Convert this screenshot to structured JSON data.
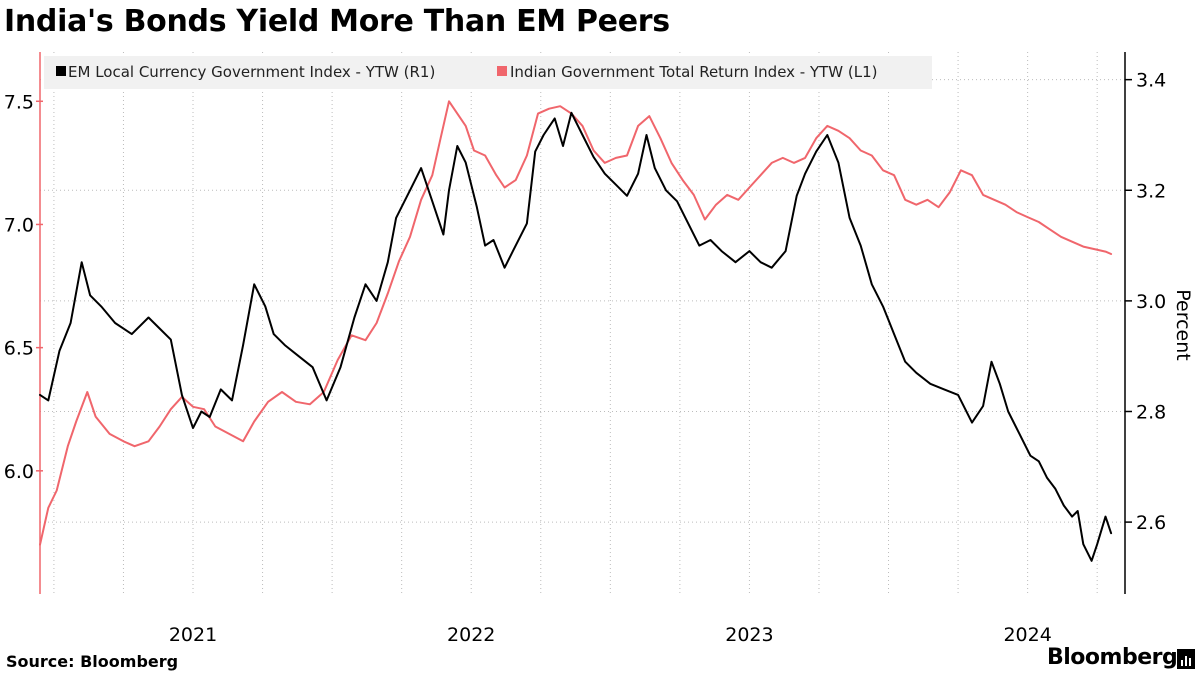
{
  "title": "India's Bonds Yield More Than EM Peers",
  "source": "Source: Bloomberg",
  "logo": "Bloomberg",
  "colors": {
    "em": "#000000",
    "india": "#f0666c",
    "grid": "#bcbcbc",
    "legend_bg": "#f1f1f1"
  },
  "chart_data": {
    "type": "line",
    "title": "India's Bonds Yield More Than EM Peers",
    "x_range": [
      2020.45,
      2024.35
    ],
    "x_ticks": [
      {
        "label": "2021",
        "value": 2021.0
      },
      {
        "label": "2022",
        "value": 2022.0
      },
      {
        "label": "2023",
        "value": 2023.0
      },
      {
        "label": "2024",
        "value": 2024.0
      }
    ],
    "gridlines_x": [
      2020.5,
      2020.75,
      2021.0,
      2021.25,
      2021.5,
      2021.75,
      2022.0,
      2022.25,
      2022.5,
      2022.75,
      2023.0,
      2023.25,
      2023.5,
      2023.75,
      2024.0,
      2024.25
    ],
    "y_left": {
      "label": "",
      "range": [
        5.5,
        7.7
      ],
      "ticks": [
        "6.0",
        "6.5",
        "7.0",
        "7.5"
      ],
      "values": [
        6.0,
        6.5,
        7.0,
        7.5
      ]
    },
    "y_right": {
      "label": "Percent",
      "range": [
        2.47,
        3.45
      ],
      "ticks": [
        "2.6",
        "2.8",
        "3.0",
        "3.2",
        "3.4"
      ],
      "values": [
        2.6,
        2.8,
        3.0,
        3.2,
        3.4
      ]
    },
    "series": [
      {
        "name": "EM Local Currency Government Index - YTW (R1)",
        "axis": "right",
        "color": "#000000",
        "x": [
          2020.45,
          2020.48,
          2020.52,
          2020.56,
          2020.6,
          2020.63,
          2020.67,
          2020.72,
          2020.78,
          2020.84,
          2020.88,
          2020.92,
          2020.96,
          2021.0,
          2021.03,
          2021.06,
          2021.1,
          2021.14,
          2021.18,
          2021.22,
          2021.26,
          2021.29,
          2021.33,
          2021.38,
          2021.43,
          2021.48,
          2021.53,
          2021.58,
          2021.62,
          2021.66,
          2021.7,
          2021.73,
          2021.78,
          2021.82,
          2021.86,
          2021.9,
          2021.92,
          2021.95,
          2021.98,
          2022.02,
          2022.05,
          2022.08,
          2022.12,
          2022.15,
          2022.2,
          2022.23,
          2022.26,
          2022.3,
          2022.33,
          2022.36,
          2022.4,
          2022.44,
          2022.48,
          2022.52,
          2022.56,
          2022.6,
          2022.63,
          2022.66,
          2022.7,
          2022.74,
          2022.78,
          2022.82,
          2022.86,
          2022.9,
          2022.95,
          2023.0,
          2023.04,
          2023.08,
          2023.13,
          2023.17,
          2023.2,
          2023.24,
          2023.28,
          2023.32,
          2023.36,
          2023.4,
          2023.44,
          2023.48,
          2023.52,
          2023.56,
          2023.6,
          2023.65,
          2023.7,
          2023.75,
          2023.8,
          2023.84,
          2023.87,
          2023.9,
          2023.93,
          2023.97,
          2024.01,
          2024.04,
          2024.07,
          2024.1,
          2024.13,
          2024.16,
          2024.18,
          2024.2,
          2024.23,
          2024.25,
          2024.28,
          2024.3
        ],
        "values": [
          2.83,
          2.82,
          2.91,
          2.96,
          3.07,
          3.01,
          2.99,
          2.96,
          2.94,
          2.97,
          2.95,
          2.93,
          2.83,
          2.77,
          2.8,
          2.79,
          2.84,
          2.82,
          2.92,
          3.03,
          2.99,
          2.94,
          2.92,
          2.9,
          2.88,
          2.82,
          2.88,
          2.97,
          3.03,
          3.0,
          3.07,
          3.15,
          3.2,
          3.24,
          3.18,
          3.12,
          3.2,
          3.28,
          3.25,
          3.17,
          3.1,
          3.11,
          3.06,
          3.09,
          3.14,
          3.27,
          3.3,
          3.33,
          3.28,
          3.34,
          3.3,
          3.26,
          3.23,
          3.21,
          3.19,
          3.23,
          3.3,
          3.24,
          3.2,
          3.18,
          3.14,
          3.1,
          3.11,
          3.09,
          3.07,
          3.09,
          3.07,
          3.06,
          3.09,
          3.19,
          3.23,
          3.27,
          3.3,
          3.25,
          3.15,
          3.1,
          3.03,
          2.99,
          2.94,
          2.89,
          2.87,
          2.85,
          2.84,
          2.83,
          2.78,
          2.81,
          2.89,
          2.85,
          2.8,
          2.76,
          2.72,
          2.71,
          2.68,
          2.66,
          2.63,
          2.61,
          2.62,
          2.56,
          2.53,
          2.56,
          2.61,
          2.58
        ]
      },
      {
        "name": "Indian Government Total Return Index - YTW (L1)",
        "axis": "left",
        "color": "#f0666c",
        "x": [
          2020.45,
          2020.48,
          2020.51,
          2020.55,
          2020.58,
          2020.62,
          2020.65,
          2020.7,
          2020.75,
          2020.79,
          2020.84,
          2020.88,
          2020.92,
          2020.96,
          2021.0,
          2021.04,
          2021.08,
          2021.13,
          2021.18,
          2021.22,
          2021.27,
          2021.32,
          2021.37,
          2021.42,
          2021.47,
          2021.52,
          2021.57,
          2021.62,
          2021.66,
          2021.7,
          2021.74,
          2021.78,
          2021.82,
          2021.86,
          2021.89,
          2021.92,
          2021.95,
          2021.98,
          2022.01,
          2022.05,
          2022.09,
          2022.12,
          2022.16,
          2022.2,
          2022.24,
          2022.28,
          2022.32,
          2022.36,
          2022.4,
          2022.44,
          2022.48,
          2022.52,
          2022.56,
          2022.6,
          2022.64,
          2022.68,
          2022.72,
          2022.76,
          2022.8,
          2022.84,
          2022.88,
          2022.92,
          2022.96,
          2023.0,
          2023.04,
          2023.08,
          2023.12,
          2023.16,
          2023.2,
          2023.24,
          2023.28,
          2023.32,
          2023.36,
          2023.4,
          2023.44,
          2023.48,
          2023.52,
          2023.56,
          2023.6,
          2023.64,
          2023.68,
          2023.72,
          2023.76,
          2023.8,
          2023.84,
          2023.88,
          2023.92,
          2023.96,
          2024.0,
          2024.04,
          2024.08,
          2024.12,
          2024.16,
          2024.2,
          2024.24,
          2024.28,
          2024.3
        ],
        "values": [
          5.7,
          5.85,
          5.92,
          6.1,
          6.2,
          6.32,
          6.22,
          6.15,
          6.12,
          6.1,
          6.12,
          6.18,
          6.25,
          6.3,
          6.26,
          6.25,
          6.18,
          6.15,
          6.12,
          6.2,
          6.28,
          6.32,
          6.28,
          6.27,
          6.32,
          6.45,
          6.55,
          6.53,
          6.6,
          6.72,
          6.85,
          6.95,
          7.1,
          7.2,
          7.35,
          7.5,
          7.45,
          7.4,
          7.3,
          7.28,
          7.2,
          7.15,
          7.18,
          7.28,
          7.45,
          7.47,
          7.48,
          7.45,
          7.4,
          7.3,
          7.25,
          7.27,
          7.28,
          7.4,
          7.44,
          7.35,
          7.25,
          7.18,
          7.12,
          7.02,
          7.08,
          7.12,
          7.1,
          7.15,
          7.2,
          7.25,
          7.27,
          7.25,
          7.27,
          7.35,
          7.4,
          7.38,
          7.35,
          7.3,
          7.28,
          7.22,
          7.2,
          7.1,
          7.08,
          7.1,
          7.07,
          7.13,
          7.22,
          7.2,
          7.12,
          7.1,
          7.08,
          7.05,
          7.03,
          7.01,
          6.98,
          6.95,
          6.93,
          6.91,
          6.9,
          6.89,
          6.88
        ]
      }
    ]
  }
}
